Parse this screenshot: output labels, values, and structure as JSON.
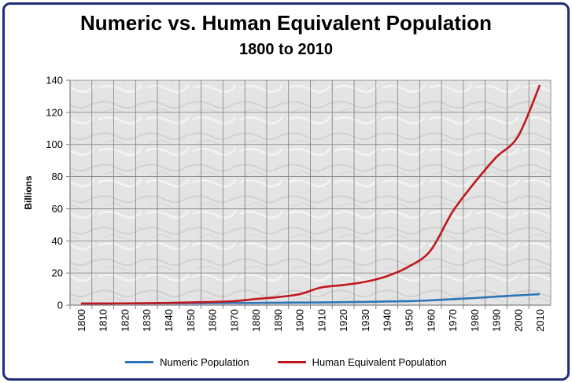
{
  "chart_data": {
    "type": "line",
    "title": "Numeric vs. Human Equivalent Population",
    "subtitle": "1800 to 2010",
    "xlabel": "",
    "ylabel": "Billions",
    "ylim": [
      0,
      140
    ],
    "yticks": [
      0,
      20,
      40,
      60,
      80,
      100,
      120,
      140
    ],
    "x": [
      1800,
      1810,
      1820,
      1830,
      1840,
      1850,
      1860,
      1870,
      1880,
      1890,
      1900,
      1910,
      1920,
      1930,
      1940,
      1950,
      1960,
      1970,
      1980,
      1990,
      2000,
      2010
    ],
    "grid": true,
    "legend_position": "bottom",
    "series": [
      {
        "name": "Numeric Population",
        "color": "#2e75b6",
        "values": [
          1.0,
          1.05,
          1.1,
          1.15,
          1.2,
          1.25,
          1.3,
          1.35,
          1.4,
          1.5,
          1.6,
          1.7,
          1.85,
          2.0,
          2.3,
          2.5,
          3.0,
          3.7,
          4.4,
          5.3,
          6.1,
          6.8
        ]
      },
      {
        "name": "Human Equivalent Population",
        "color": "#c0181f",
        "values": [
          1.0,
          1.0,
          1.1,
          1.2,
          1.4,
          1.7,
          2.0,
          2.5,
          3.8,
          5.0,
          6.8,
          11.0,
          12.5,
          14.5,
          18.0,
          24.0,
          34.0,
          58.0,
          76.0,
          92.0,
          105.0,
          137.0
        ]
      }
    ]
  }
}
